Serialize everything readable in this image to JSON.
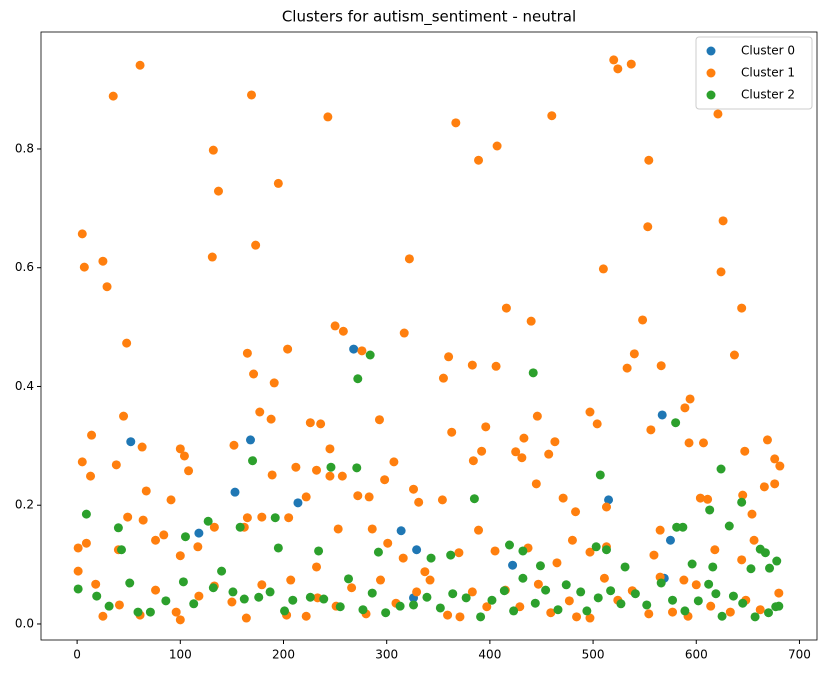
{
  "chart_data": {
    "type": "scatter",
    "title": "Clusters for autism_sentiment - neutral",
    "xlim": [
      -35,
      717
    ],
    "ylim": [
      -0.027,
      0.997
    ],
    "xticks": [
      0,
      100,
      200,
      300,
      400,
      500,
      600,
      700
    ],
    "yticks": [
      {
        "value": 0,
        "label": "0.0"
      },
      0.2,
      0.4,
      0.6,
      0.8
    ],
    "legend": "upper right",
    "series": [
      {
        "name": "Cluster 0",
        "color": "#1f77b4",
        "x": [
          52,
          153,
          214,
          268,
          314,
          329,
          326,
          422,
          515,
          567,
          569,
          575,
          168,
          118
        ],
        "values": [
          0.307,
          0.222,
          0.204,
          0.463,
          0.157,
          0.125,
          0.044,
          0.099,
          0.209,
          0.352,
          0.077,
          0.141,
          0.31,
          0.153
        ]
      },
      {
        "name": "Cluster 1",
        "color": "#ff7f0e",
        "x": [
          61,
          35,
          169,
          243,
          520,
          524,
          537,
          460,
          367,
          407,
          389,
          554,
          621,
          132,
          137,
          195,
          5,
          7,
          25,
          29,
          131,
          173,
          322,
          510,
          626,
          624,
          553,
          48,
          165,
          250,
          258,
          276,
          317,
          360,
          416,
          440,
          637,
          644,
          548,
          540,
          204,
          355,
          383,
          406,
          533,
          566,
          171,
          191,
          177,
          188,
          45,
          14,
          63,
          100,
          152,
          236,
          226,
          293,
          363,
          396,
          431,
          446,
          463,
          497,
          504,
          556,
          594,
          589,
          607,
          593,
          669,
          676,
          681,
          5,
          13,
          38,
          67,
          91,
          104,
          108,
          189,
          212,
          232,
          245,
          245,
          222,
          257,
          272,
          283,
          298,
          307,
          326,
          331,
          354,
          384,
          392,
          425,
          433,
          457,
          445,
          471,
          483,
          513,
          565,
          604,
          611,
          645,
          647,
          676,
          654,
          666,
          49,
          64,
          1,
          9,
          40,
          76,
          84,
          100,
          117,
          133,
          162,
          179,
          165,
          205,
          232,
          253,
          286,
          301,
          316,
          337,
          370,
          389,
          405,
          437,
          465,
          480,
          497,
          513,
          559,
          588,
          618,
          644,
          656,
          1,
          18,
          25,
          41,
          61,
          76,
          96,
          100,
          118,
          133,
          150,
          164,
          179,
          203,
          207,
          222,
          233,
          251,
          266,
          280,
          294,
          309,
          329,
          342,
          359,
          371,
          383,
          397,
          415,
          429,
          447,
          459,
          477,
          484,
          497,
          511,
          524,
          538,
          554,
          565,
          577,
          592,
          600,
          614,
          633,
          648,
          662,
          680
        ],
        "values": [
          0.941,
          0.889,
          0.891,
          0.854,
          0.95,
          0.935,
          0.943,
          0.856,
          0.844,
          0.805,
          0.781,
          0.781,
          0.859,
          0.798,
          0.729,
          0.742,
          0.657,
          0.601,
          0.611,
          0.568,
          0.618,
          0.638,
          0.615,
          0.598,
          0.679,
          0.593,
          0.669,
          0.473,
          0.456,
          0.502,
          0.493,
          0.46,
          0.49,
          0.45,
          0.532,
          0.51,
          0.453,
          0.532,
          0.512,
          0.455,
          0.463,
          0.414,
          0.436,
          0.434,
          0.431,
          0.435,
          0.421,
          0.406,
          0.357,
          0.345,
          0.35,
          0.318,
          0.298,
          0.295,
          0.301,
          0.337,
          0.339,
          0.344,
          0.323,
          0.332,
          0.28,
          0.35,
          0.307,
          0.357,
          0.337,
          0.327,
          0.379,
          0.364,
          0.305,
          0.305,
          0.31,
          0.278,
          0.266,
          0.273,
          0.249,
          0.268,
          0.224,
          0.209,
          0.283,
          0.258,
          0.251,
          0.264,
          0.259,
          0.295,
          0.249,
          0.214,
          0.249,
          0.216,
          0.214,
          0.243,
          0.273,
          0.227,
          0.205,
          0.209,
          0.275,
          0.291,
          0.29,
          0.313,
          0.286,
          0.236,
          0.212,
          0.189,
          0.197,
          0.158,
          0.212,
          0.21,
          0.217,
          0.291,
          0.236,
          0.185,
          0.231,
          0.18,
          0.175,
          0.128,
          0.136,
          0.125,
          0.141,
          0.15,
          0.115,
          0.13,
          0.163,
          0.163,
          0.18,
          0.179,
          0.179,
          0.096,
          0.16,
          0.16,
          0.136,
          0.111,
          0.088,
          0.12,
          0.158,
          0.123,
          0.128,
          0.103,
          0.141,
          0.121,
          0.13,
          0.116,
          0.074,
          0.125,
          0.108,
          0.141,
          0.089,
          0.067,
          0.013,
          0.032,
          0.015,
          0.057,
          0.02,
          0.007,
          0.047,
          0.064,
          0.037,
          0.01,
          0.066,
          0.015,
          0.074,
          0.013,
          0.044,
          0.03,
          0.061,
          0.017,
          0.074,
          0.035,
          0.054,
          0.074,
          0.015,
          0.012,
          0.054,
          0.029,
          0.057,
          0.029,
          0.067,
          0.019,
          0.039,
          0.012,
          0.01,
          0.077,
          0.04,
          0.056,
          0.017,
          0.079,
          0.02,
          0.013,
          0.066,
          0.03,
          0.02,
          0.04,
          0.024,
          0.052
        ]
      },
      {
        "name": "Cluster 2",
        "color": "#2ca02c",
        "x": [
          272,
          284,
          442,
          580,
          170,
          246,
          271,
          385,
          507,
          9,
          40,
          43,
          127,
          158,
          192,
          419,
          581,
          613,
          644,
          624,
          587,
          632,
          662,
          667,
          105,
          195,
          234,
          292,
          343,
          362,
          432,
          449,
          503,
          513,
          531,
          596,
          616,
          612,
          653,
          671,
          678,
          1,
          19,
          31,
          51,
          59,
          71,
          86,
          103,
          113,
          132,
          140,
          151,
          162,
          176,
          187,
          201,
          209,
          226,
          239,
          255,
          263,
          277,
          286,
          299,
          313,
          326,
          339,
          352,
          364,
          377,
          391,
          402,
          414,
          423,
          432,
          444,
          454,
          466,
          474,
          488,
          494,
          505,
          517,
          527,
          541,
          552,
          566,
          577,
          589,
          602,
          619,
          625,
          636,
          645,
          657,
          670,
          677,
          680
        ],
        "values": [
          0.413,
          0.453,
          0.423,
          0.339,
          0.275,
          0.264,
          0.263,
          0.211,
          0.251,
          0.185,
          0.162,
          0.125,
          0.173,
          0.163,
          0.179,
          0.133,
          0.163,
          0.192,
          0.205,
          0.261,
          0.163,
          0.165,
          0.126,
          0.12,
          0.147,
          0.128,
          0.123,
          0.121,
          0.111,
          0.116,
          0.123,
          0.098,
          0.13,
          0.125,
          0.096,
          0.101,
          0.096,
          0.067,
          0.093,
          0.094,
          0.106,
          0.059,
          0.047,
          0.03,
          0.069,
          0.02,
          0.02,
          0.039,
          0.071,
          0.034,
          0.061,
          0.089,
          0.054,
          0.042,
          0.045,
          0.054,
          0.022,
          0.04,
          0.045,
          0.042,
          0.029,
          0.076,
          0.024,
          0.052,
          0.019,
          0.03,
          0.032,
          0.045,
          0.027,
          0.051,
          0.044,
          0.012,
          0.04,
          0.056,
          0.022,
          0.077,
          0.035,
          0.057,
          0.024,
          0.066,
          0.054,
          0.022,
          0.044,
          0.056,
          0.034,
          0.051,
          0.032,
          0.069,
          0.04,
          0.022,
          0.039,
          0.051,
          0.013,
          0.047,
          0.035,
          0.012,
          0.019,
          0.029,
          0.03
        ]
      }
    ]
  }
}
